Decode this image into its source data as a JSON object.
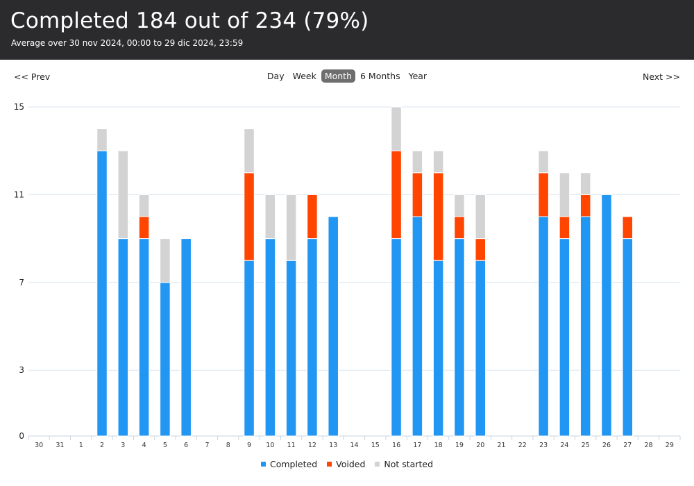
{
  "header": {
    "title": "Completed 184 out of 234 (79%)",
    "subtitle": "Average over 30 nov 2024, 00:00 to 29 dic 2024, 23:59"
  },
  "nav": {
    "prev_label": "<< Prev",
    "next_label": "Next >>",
    "periods": [
      {
        "label": "Day",
        "active": false
      },
      {
        "label": "Week",
        "active": false
      },
      {
        "label": "Month",
        "active": true
      },
      {
        "label": "6 Months",
        "active": false
      },
      {
        "label": "Year",
        "active": false
      }
    ]
  },
  "colors": {
    "completed": "#2196f3",
    "voided": "#ff4500",
    "not_started": "#d3d3d3",
    "grid": "#d8e6f2",
    "header_bg": "#2b2b2e"
  },
  "chart_data": {
    "type": "bar",
    "stacked": true,
    "categories": [
      "30",
      "31",
      "1",
      "2",
      "3",
      "4",
      "5",
      "6",
      "7",
      "8",
      "9",
      "10",
      "11",
      "12",
      "13",
      "14",
      "15",
      "16",
      "17",
      "18",
      "19",
      "20",
      "21",
      "22",
      "23",
      "24",
      "25",
      "26",
      "27",
      "28",
      "29"
    ],
    "series": [
      {
        "name": "Completed",
        "color": "#2196f3",
        "values": [
          0,
          0,
          0,
          13,
          9,
          9,
          7,
          9,
          0,
          0,
          8,
          9,
          8,
          9,
          10,
          0,
          0,
          9,
          10,
          8,
          9,
          8,
          0,
          0,
          10,
          9,
          10,
          11,
          9,
          0,
          0
        ]
      },
      {
        "name": "Voided",
        "color": "#ff4500",
        "values": [
          0,
          0,
          0,
          0,
          0,
          1,
          0,
          0,
          0,
          0,
          4,
          0,
          0,
          2,
          0,
          0,
          0,
          4,
          2,
          4,
          1,
          1,
          0,
          0,
          2,
          1,
          1,
          0,
          1,
          0,
          0
        ]
      },
      {
        "name": "Not started",
        "color": "#d3d3d3",
        "values": [
          0,
          0,
          0,
          1,
          4,
          1,
          2,
          0,
          0,
          0,
          2,
          2,
          3,
          0,
          0,
          0,
          0,
          2,
          1,
          1,
          1,
          2,
          0,
          0,
          1,
          2,
          1,
          0,
          0,
          0,
          0
        ]
      }
    ],
    "yticks": [
      "0",
      "3",
      "7",
      "11",
      "15"
    ],
    "ylim": [
      0,
      15
    ],
    "grid": true,
    "legend_position": "bottom-center"
  }
}
